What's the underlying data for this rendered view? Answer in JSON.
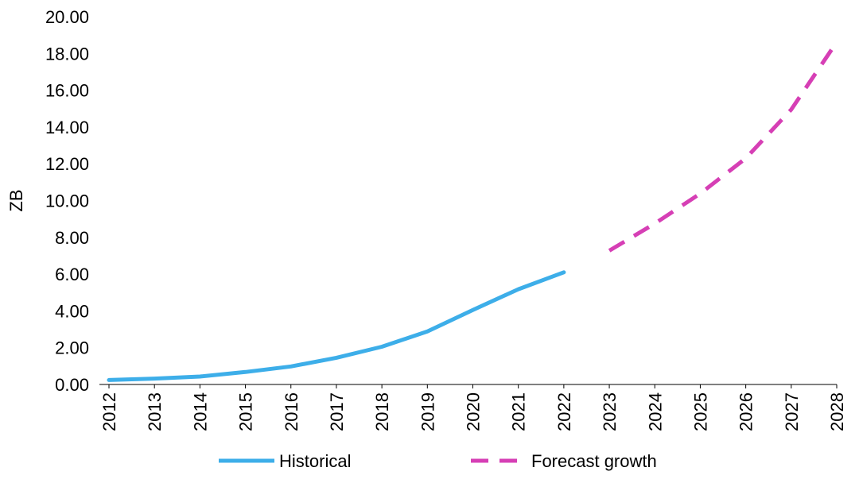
{
  "chart_data": {
    "type": "line",
    "title": "",
    "xlabel": "",
    "ylabel": "ZB",
    "ylim": [
      0,
      20
    ],
    "grid": false,
    "legend_position": "bottom",
    "y_ticks": [
      "0.00",
      "2.00",
      "4.00",
      "6.00",
      "8.00",
      "10.00",
      "12.00",
      "14.00",
      "16.00",
      "18.00",
      "20.00"
    ],
    "categories": [
      "2012",
      "2013",
      "2014",
      "2015",
      "2016",
      "2017",
      "2018",
      "2019",
      "2020",
      "2021",
      "2022",
      "2023",
      "2024",
      "2025",
      "2026",
      "2027",
      "2028"
    ],
    "series": [
      {
        "name": "Historical",
        "color": "#3daee9",
        "line_style": "solid",
        "x": [
          "2012",
          "2013",
          "2014",
          "2015",
          "2016",
          "2017",
          "2018",
          "2019",
          "2020",
          "2021",
          "2022"
        ],
        "values": [
          0.24,
          0.32,
          0.43,
          0.68,
          0.98,
          1.45,
          2.05,
          2.88,
          4.05,
          5.18,
          6.1
        ]
      },
      {
        "name": "Forecast growth",
        "color": "#d63fb5",
        "line_style": "dashed",
        "x": [
          "2023",
          "2024",
          "2025",
          "2026",
          "2027",
          "2028"
        ],
        "values": [
          7.28,
          8.75,
          10.38,
          12.3,
          14.95,
          18.62
        ]
      }
    ]
  }
}
